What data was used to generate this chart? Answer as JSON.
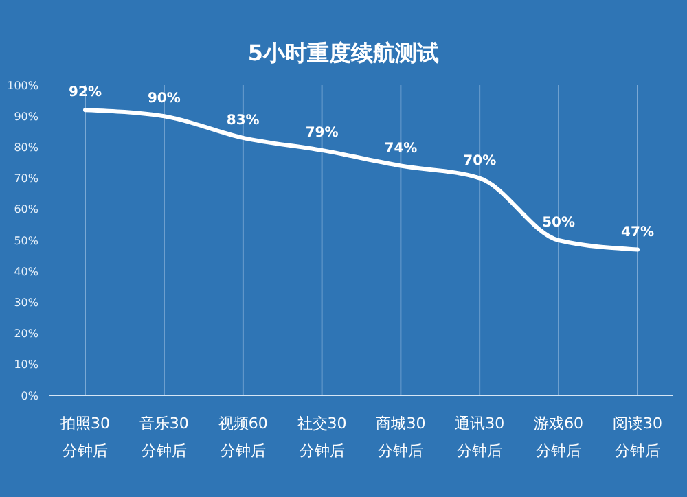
{
  "chart_data": {
    "type": "line",
    "title": "5小时重度续航测试",
    "categories": [
      "拍照30\n分钟后",
      "音乐30\n分钟后",
      "视频60\n分钟后",
      "社交30\n分钟后",
      "商城30\n分钟后",
      "通讯30\n分钟后",
      "游戏60\n分钟后",
      "阅读30\n分钟后"
    ],
    "series": [
      {
        "color": "#ffffff",
        "values": [
          92,
          90,
          83,
          79,
          74,
          70,
          50,
          47
        ],
        "value_labels": [
          "92%",
          "90%",
          "83%",
          "79%",
          "74%",
          "70%",
          "50%",
          "47%"
        ]
      }
    ],
    "ylim": [
      0,
      100
    ],
    "yticks": [
      {
        "value": 0,
        "label": "0%"
      },
      {
        "value": 10,
        "label": "10%"
      },
      {
        "value": 20,
        "label": "20%"
      },
      {
        "value": 30,
        "label": "30%"
      },
      {
        "value": 40,
        "label": "40%"
      },
      {
        "value": 50,
        "label": "50%"
      },
      {
        "value": 60,
        "label": "60%"
      },
      {
        "value": 70,
        "label": "70%"
      },
      {
        "value": 80,
        "label": "80%"
      },
      {
        "value": 90,
        "label": "90%"
      },
      {
        "value": 100,
        "label": "100%"
      }
    ],
    "grid": "x",
    "marker": "none",
    "line_style": "solid"
  }
}
